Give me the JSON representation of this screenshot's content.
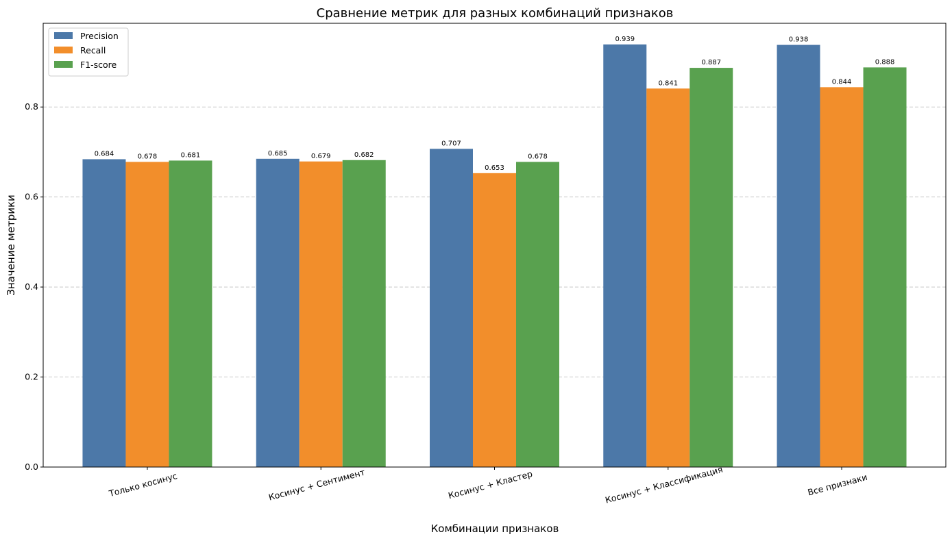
{
  "chart_data": {
    "type": "bar",
    "title": "Сравнение метрик для разных комбинаций признаков",
    "xlabel": "Комбинации признаков",
    "ylabel": "Значение метрики",
    "categories": [
      "Только косинус",
      "Косинус + Сентимент",
      "Косинус + Кластер",
      "Косинус + Классификация",
      "Все признаки"
    ],
    "series": [
      {
        "name": "Precision",
        "color": "#4c78a8",
        "values": [
          0.684,
          0.685,
          0.707,
          0.939,
          0.938
        ],
        "labels": [
          "0.684",
          "0.685",
          "0.707",
          "0.939",
          "0.938"
        ]
      },
      {
        "name": "Recall",
        "color": "#f28e2b",
        "values": [
          0.678,
          0.679,
          0.653,
          0.841,
          0.844
        ],
        "labels": [
          "0.678",
          "0.679",
          "0.653",
          "0.841",
          "0.844"
        ]
      },
      {
        "name": "F1-score",
        "color": "#59a14f",
        "values": [
          0.681,
          0.682,
          0.678,
          0.887,
          0.888
        ],
        "labels": [
          "0.681",
          "0.682",
          "0.678",
          "0.887",
          "0.888"
        ]
      }
    ],
    "ylim": [
      0,
      0.986
    ],
    "yticks": [
      0.0,
      0.2,
      0.4,
      0.6,
      0.8
    ],
    "ytick_labels": [
      "0.0",
      "0.2",
      "0.4",
      "0.6",
      "0.8"
    ],
    "grid": "y-dashed",
    "legend_position": "top-left"
  }
}
